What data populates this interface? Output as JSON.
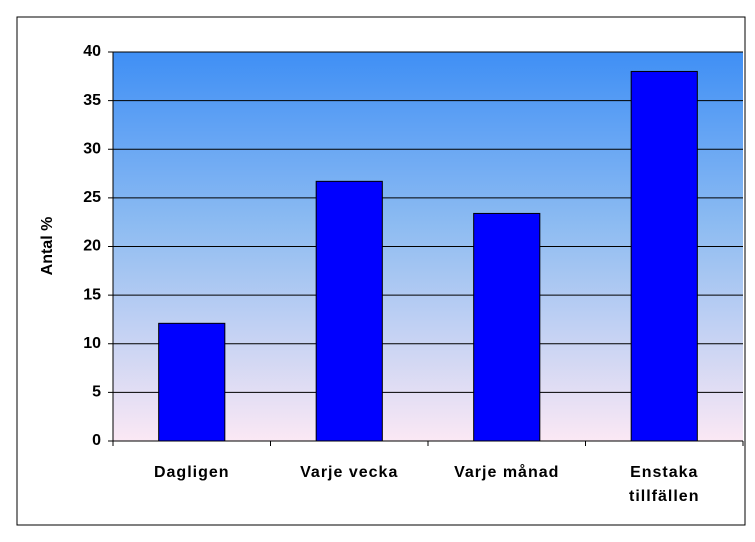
{
  "chart_data": {
    "type": "bar",
    "ylabel": "Antal %",
    "categories": [
      "Dagligen",
      "Varje vecka",
      "Varje månad",
      "Enstaka tillfällen"
    ],
    "values": [
      12.1,
      26.7,
      23.4,
      38
    ],
    "color": "#0000ff",
    "ylim": [
      0,
      40
    ],
    "yticks": [
      0,
      5,
      10,
      15,
      20,
      25,
      30,
      35,
      40
    ],
    "grid": true
  }
}
